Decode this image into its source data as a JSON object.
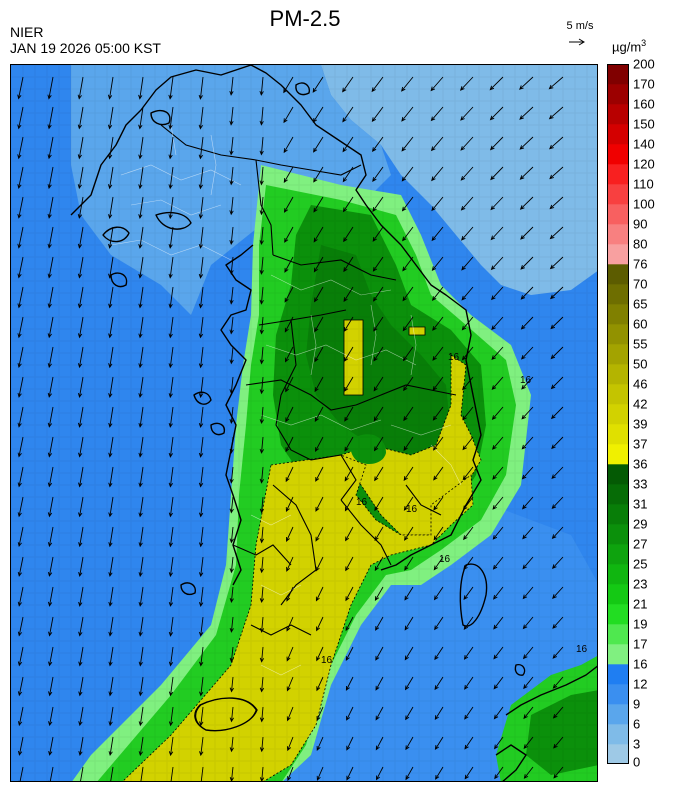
{
  "header": {
    "title": "PM-2.5",
    "organization": "NIER",
    "timestamp": "JAN 19 2026 05:00 KST",
    "wind_reference": "5 m/s",
    "unit": "µg/m",
    "unit_exponent": "3"
  },
  "legend": {
    "labels": [
      "0",
      "3",
      "6",
      "9",
      "12",
      "16",
      "17",
      "19",
      "21",
      "23",
      "25",
      "27",
      "29",
      "31",
      "33",
      "36",
      "37",
      "39",
      "42",
      "46",
      "50",
      "55",
      "60",
      "65",
      "70",
      "76",
      "80",
      "90",
      "100",
      "110",
      "120",
      "140",
      "150",
      "160",
      "170",
      "200"
    ],
    "bins": [
      {
        "color": "#9ec9e6",
        "range": "0-3"
      },
      {
        "color": "#7fbbe8",
        "range": "3-6"
      },
      {
        "color": "#5aa6ec",
        "range": "6-9"
      },
      {
        "color": "#3a8ff0",
        "range": "9-12"
      },
      {
        "color": "#1f7ef2",
        "range": "12-16"
      },
      {
        "color": "#80f080",
        "range": "16-17"
      },
      {
        "color": "#4fe84f",
        "range": "17-19"
      },
      {
        "color": "#22dd22",
        "range": "19-21"
      },
      {
        "color": "#14c914",
        "range": "21-23"
      },
      {
        "color": "#10b610",
        "range": "23-25"
      },
      {
        "color": "#0ea30e",
        "range": "25-27"
      },
      {
        "color": "#0b900b",
        "range": "27-29"
      },
      {
        "color": "#087e08",
        "range": "29-31"
      },
      {
        "color": "#066c06",
        "range": "31-33"
      },
      {
        "color": "#045a04",
        "range": "33-36"
      },
      {
        "color": "#f0f000",
        "range": "36-37"
      },
      {
        "color": "#e0e000",
        "range": "37-39"
      },
      {
        "color": "#d2d200",
        "range": "39-42"
      },
      {
        "color": "#c4c400",
        "range": "42-46"
      },
      {
        "color": "#b4b400",
        "range": "46-50"
      },
      {
        "color": "#a3a300",
        "range": "50-55"
      },
      {
        "color": "#929200",
        "range": "55-60"
      },
      {
        "color": "#808000",
        "range": "60-65"
      },
      {
        "color": "#6e6e00",
        "range": "65-70"
      },
      {
        "color": "#5c5c00",
        "range": "70-76"
      },
      {
        "color": "#f8a0a0",
        "range": "76-80"
      },
      {
        "color": "#f88080",
        "range": "80-90"
      },
      {
        "color": "#f86060",
        "range": "90-100"
      },
      {
        "color": "#f84040",
        "range": "100-110"
      },
      {
        "color": "#f82020",
        "range": "110-120"
      },
      {
        "color": "#f00000",
        "range": "120-140"
      },
      {
        "color": "#d40000",
        "range": "140-150"
      },
      {
        "color": "#b80000",
        "range": "150-160"
      },
      {
        "color": "#9c0000",
        "range": "160-170"
      },
      {
        "color": "#800000",
        "range": "170-200"
      }
    ]
  },
  "colors": {
    "sea": "#2f86ee",
    "sea_light": "#7fbbe8",
    "coast": "#1f7ef2",
    "good": "#22cc22",
    "moderate": "#0b900b",
    "elevated": "#d2d200",
    "border": "#000000"
  }
}
